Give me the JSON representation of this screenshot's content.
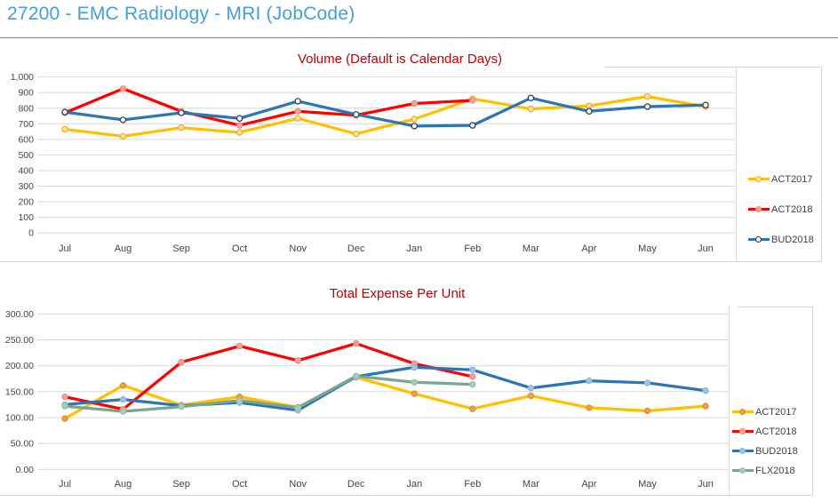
{
  "header": {
    "title": "27200 - EMC Radiology - MRI (JobCode)"
  },
  "colors": {
    "header_title": "#41A0DB",
    "chart_title": "#C00000",
    "axis_text": "#444444",
    "gridline": "#D9D9D9",
    "chart_border": "#D6D6D6",
    "act2017": "#FFC000",
    "act2018": "#FF0000",
    "bud2018": "#2E75B6",
    "flx2018": "#7AA592"
  },
  "chart_data": [
    {
      "type": "line",
      "name": "volume-chart",
      "title": "Volume (Default is Calendar Days)",
      "categories": [
        "Jul",
        "Aug",
        "Sep",
        "Oct",
        "Nov",
        "Dec",
        "Jan",
        "Feb",
        "Mar",
        "Apr",
        "May",
        "Jun"
      ],
      "y_ticks": [
        "1,000",
        "900",
        "800",
        "700",
        "600",
        "500",
        "400",
        "300",
        "200",
        "100",
        "0"
      ],
      "ylim": [
        0,
        1000
      ],
      "y_step": 100,
      "grid": true,
      "legend_position": "right",
      "series": [
        {
          "name": "ACT2017",
          "color": "#FFC000",
          "marker_fill": "#FFE699",
          "marker_stroke": "#F0A830",
          "values": [
            665,
            620,
            675,
            645,
            735,
            635,
            730,
            860,
            795,
            815,
            875,
            810
          ]
        },
        {
          "name": "ACT2018",
          "color": "#FF0000",
          "marker_fill": "#F2A29A",
          "marker_stroke": "#ED8B80",
          "values": [
            770,
            925,
            780,
            690,
            780,
            755,
            830,
            850,
            null,
            null,
            null,
            null
          ]
        },
        {
          "name": "BUD2018",
          "color": "#2E75B6",
          "marker_fill": "#FFF8E1",
          "marker_stroke": "#1F3864",
          "values": [
            775,
            725,
            770,
            735,
            845,
            760,
            685,
            690,
            865,
            780,
            810,
            820
          ]
        }
      ]
    },
    {
      "type": "line",
      "name": "expense-chart",
      "title": "Total Expense Per Unit",
      "categories": [
        "Jul",
        "Aug",
        "Sep",
        "Oct",
        "Nov",
        "Dec",
        "Jan",
        "Feb",
        "Mar",
        "Apr",
        "May",
        "Jun"
      ],
      "y_ticks": [
        "300.00",
        "250.00",
        "200.00",
        "150.00",
        "100.00",
        "50.00",
        "0.00"
      ],
      "ylim": [
        0,
        300
      ],
      "y_step": 50,
      "grid": true,
      "legend_position": "right",
      "series": [
        {
          "name": "ACT2017",
          "color": "#FFC000",
          "marker_fill": "#ED9F49",
          "marker_stroke": "#E08E36",
          "values": [
            98,
            162,
            124,
            140,
            120,
            178,
            146,
            117,
            142,
            119,
            113,
            122
          ]
        },
        {
          "name": "ACT2018",
          "color": "#FF0000",
          "marker_fill": "#F2A29A",
          "marker_stroke": "#ED8B80",
          "values": [
            140,
            116,
            207,
            238,
            210,
            243,
            204,
            179,
            null,
            null,
            null,
            null
          ]
        },
        {
          "name": "BUD2018",
          "color": "#2E75B6",
          "marker_fill": "#9DC3E6",
          "marker_stroke": "#8AB4DC",
          "values": [
            125,
            135,
            123,
            129,
            114,
            179,
            197,
            192,
            157,
            171,
            167,
            152
          ]
        },
        {
          "name": "FLX2018",
          "color": "#7AA592",
          "marker_fill": "#A9CBBD",
          "marker_stroke": "#98BFAF",
          "values": [
            122,
            112,
            121,
            133,
            119,
            180,
            168,
            164,
            null,
            null,
            null,
            null
          ]
        }
      ]
    }
  ]
}
